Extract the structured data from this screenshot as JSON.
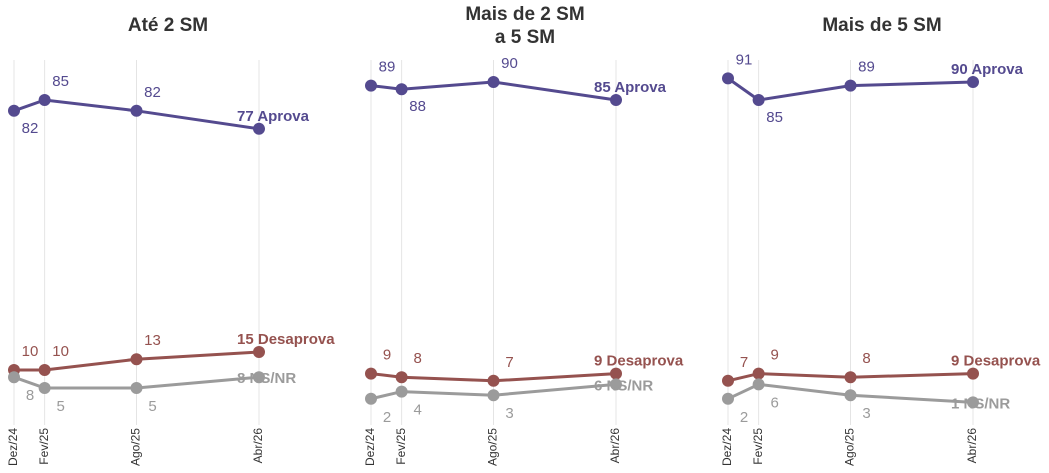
{
  "chart_data": [
    {
      "type": "line",
      "title": "Até 2 SM",
      "x": [
        "2024-12",
        "2025-02",
        "2025-08",
        "2026-04"
      ],
      "xticks": [
        {
          "value": "2024-12",
          "label": "Dez/24"
        },
        {
          "value": "2025-02",
          "label": "Fev/25"
        },
        {
          "value": "2025-08",
          "label": "Ago/25"
        },
        {
          "value": "2026-04",
          "label": "Abr/26"
        }
      ],
      "ylim": [
        0,
        100
      ],
      "grid": true,
      "series": [
        {
          "name": "Aprova",
          "color": "#544a8f",
          "values": [
            82,
            85,
            82,
            77
          ]
        },
        {
          "name": "Desaprova",
          "color": "#95524f",
          "values": [
            10,
            10,
            13,
            15
          ]
        },
        {
          "name": "NS/NR",
          "color": "#9b9b9b",
          "values": [
            8,
            5,
            5,
            8
          ]
        }
      ]
    },
    {
      "type": "line",
      "title": "Mais de 2 SM\na 5 SM",
      "x": [
        "2024-12",
        "2025-02",
        "2025-08",
        "2026-04"
      ],
      "xticks": [
        {
          "value": "2024-12",
          "label": "Dez/24"
        },
        {
          "value": "2025-02",
          "label": "Fev/25"
        },
        {
          "value": "2025-08",
          "label": "Ago/25"
        },
        {
          "value": "2026-04",
          "label": "Abr/26"
        }
      ],
      "ylim": [
        0,
        100
      ],
      "grid": true,
      "series": [
        {
          "name": "Aprova",
          "color": "#544a8f",
          "values": [
            89,
            88,
            90,
            85
          ]
        },
        {
          "name": "Desaprova",
          "color": "#95524f",
          "values": [
            9,
            8,
            7,
            9
          ]
        },
        {
          "name": "NS/NR",
          "color": "#9b9b9b",
          "values": [
            2,
            4,
            3,
            6
          ]
        }
      ]
    },
    {
      "type": "line",
      "title": "Mais de 5 SM",
      "x": [
        "2024-12",
        "2025-02",
        "2025-08",
        "2026-04"
      ],
      "xticks": [
        {
          "value": "2024-12",
          "label": "Dez/24"
        },
        {
          "value": "2025-02",
          "label": "Fev/25"
        },
        {
          "value": "2025-08",
          "label": "Ago/25"
        },
        {
          "value": "2026-04",
          "label": "Abr/26"
        }
      ],
      "ylim": [
        0,
        100
      ],
      "grid": true,
      "series": [
        {
          "name": "Aprova",
          "color": "#544a8f",
          "values": [
            91,
            85,
            89,
            90
          ]
        },
        {
          "name": "Desaprova",
          "color": "#95524f",
          "values": [
            7,
            9,
            8,
            9
          ]
        },
        {
          "name": "NS/NR",
          "color": "#9b9b9b",
          "values": [
            2,
            6,
            3,
            1
          ]
        }
      ]
    }
  ]
}
